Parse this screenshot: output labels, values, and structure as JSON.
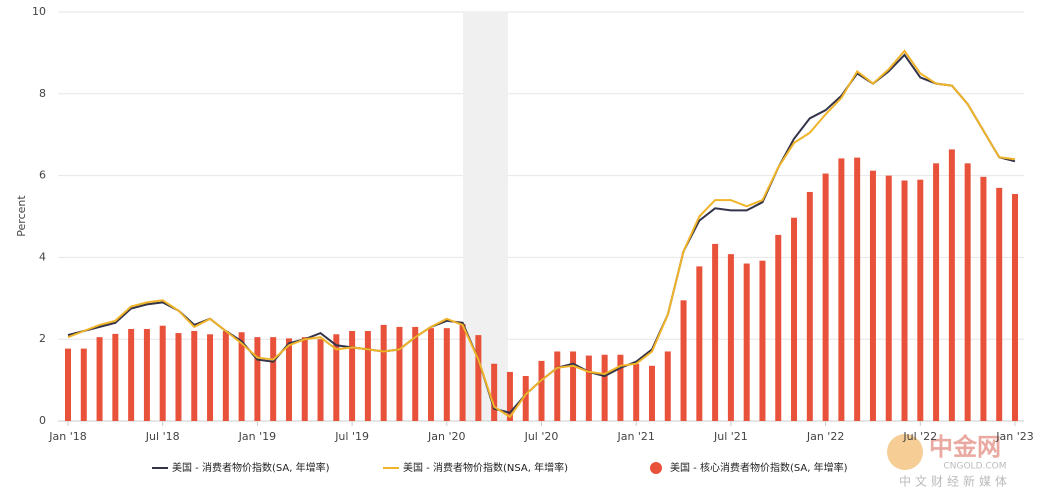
{
  "chart_data": {
    "type": "bar",
    "y_label": "Percent",
    "categories": [
      "Jan '18",
      null,
      null,
      null,
      null,
      null,
      "Jul '18",
      null,
      null,
      null,
      null,
      null,
      "Jan '19",
      null,
      null,
      null,
      null,
      null,
      "Jul '19",
      null,
      null,
      null,
      null,
      null,
      "Jan '20",
      null,
      null,
      null,
      null,
      null,
      "Jul '20",
      null,
      null,
      null,
      null,
      null,
      "Jan '21",
      null,
      null,
      null,
      null,
      null,
      "Jul '21",
      null,
      null,
      null,
      null,
      null,
      "Jan '22",
      null,
      null,
      null,
      null,
      null,
      "Jul '22",
      null,
      null,
      null,
      null,
      null,
      "Jan '23"
    ],
    "series": [
      {
        "name": "美国 - 消费者物价指数(SA, 年增率)",
        "type": "line",
        "color": "#33334a",
        "values": [
          2.1,
          2.2,
          2.3,
          2.4,
          2.75,
          2.85,
          2.9,
          2.7,
          2.35,
          2.5,
          2.2,
          1.95,
          1.5,
          1.45,
          1.9,
          2.0,
          2.15,
          1.85,
          1.8,
          1.75,
          1.7,
          1.75,
          2.05,
          2.3,
          2.45,
          2.4,
          1.5,
          0.3,
          0.2,
          0.65,
          1.0,
          1.3,
          1.4,
          1.2,
          1.1,
          1.3,
          1.45,
          1.75,
          2.6,
          4.15,
          4.9,
          5.2,
          5.15,
          5.15,
          5.35,
          6.2,
          6.9,
          7.4,
          7.6,
          7.95,
          8.5,
          8.25,
          8.55,
          8.95,
          8.4,
          8.25,
          8.2,
          7.75,
          7.1,
          6.45,
          6.35
        ]
      },
      {
        "name": "美国 - 消费者物价指数(NSA, 年增率)",
        "type": "line",
        "color": "#f0b429",
        "values": [
          2.05,
          2.2,
          2.35,
          2.45,
          2.8,
          2.9,
          2.95,
          2.7,
          2.3,
          2.5,
          2.2,
          1.9,
          1.55,
          1.5,
          1.85,
          2.0,
          2.05,
          1.75,
          1.8,
          1.75,
          1.7,
          1.75,
          2.05,
          2.3,
          2.5,
          2.35,
          1.5,
          0.35,
          0.1,
          0.65,
          1.0,
          1.3,
          1.35,
          1.2,
          1.15,
          1.35,
          1.4,
          1.7,
          2.6,
          4.15,
          5.0,
          5.4,
          5.4,
          5.25,
          5.4,
          6.2,
          6.8,
          7.05,
          7.5,
          7.9,
          8.55,
          8.25,
          8.6,
          9.05,
          8.5,
          8.25,
          8.2,
          7.75,
          7.1,
          6.45,
          6.4
        ]
      },
      {
        "name": "美国 - 核心消费者物价指数(SA, 年增率)",
        "type": "bar",
        "color": "#e8513a",
        "values": [
          1.77,
          1.77,
          2.05,
          2.13,
          2.25,
          2.25,
          2.33,
          2.15,
          2.2,
          2.12,
          2.2,
          2.17,
          2.05,
          2.05,
          2.02,
          2.05,
          2.0,
          2.12,
          2.2,
          2.2,
          2.35,
          2.3,
          2.3,
          2.27,
          2.27,
          2.37,
          2.1,
          1.4,
          1.2,
          1.1,
          1.47,
          1.7,
          1.7,
          1.6,
          1.62,
          1.62,
          1.4,
          1.35,
          1.7,
          2.95,
          3.78,
          4.33,
          4.08,
          3.85,
          3.92,
          4.55,
          4.97,
          5.6,
          6.05,
          6.42,
          6.44,
          6.12,
          6.0,
          5.88,
          5.9,
          6.3,
          6.64,
          6.3,
          5.97,
          5.7,
          5.55
        ]
      }
    ],
    "ylim": [
      0,
      10
    ],
    "yticks": [
      0,
      2,
      4,
      6,
      8,
      10
    ],
    "grid": true,
    "legend": "bottom"
  },
  "watermark": {
    "name": "中金网",
    "url": "CNGOLD.COM",
    "slogan": "中文财经新媒体"
  }
}
